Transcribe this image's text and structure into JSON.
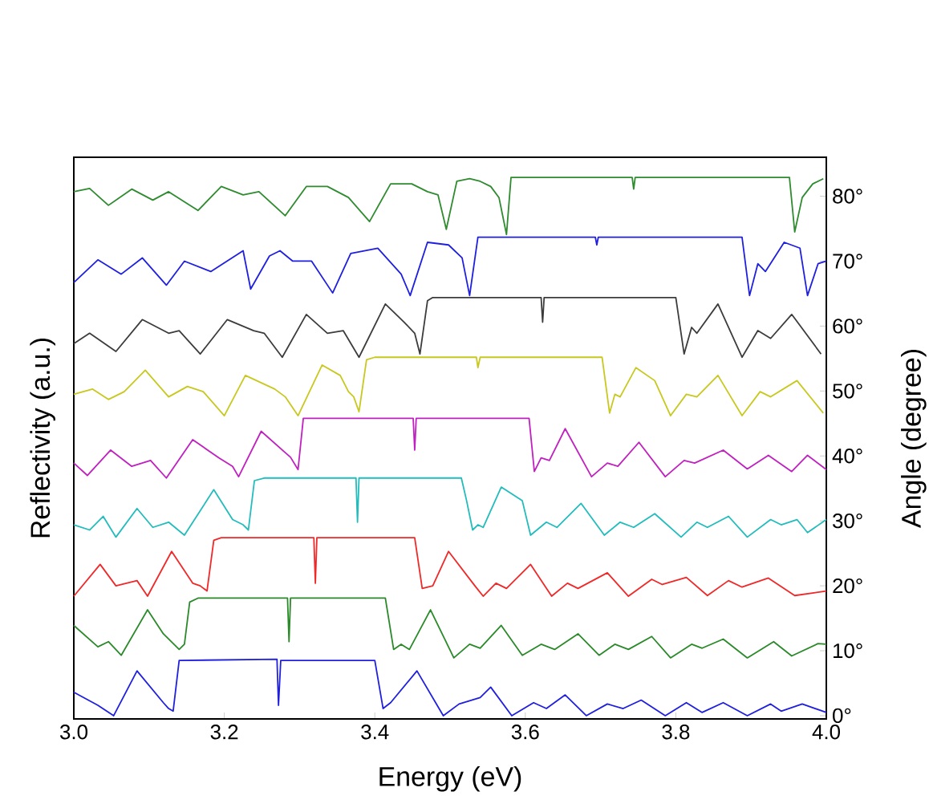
{
  "chart_data": {
    "type": "line",
    "xlabel": "Energy (eV)",
    "ylabel": "Reflectivity (a.u.)",
    "y2label": "Angle (degree)",
    "xlim": [
      3.0,
      4.0
    ],
    "xticks": [
      {
        "value": 3.0,
        "label": "3.0"
      },
      {
        "value": 3.2,
        "label": "3.2"
      },
      {
        "value": 3.4,
        "label": "3.4"
      },
      {
        "value": 3.6,
        "label": "3.6"
      },
      {
        "value": 3.8,
        "label": "3.8"
      },
      {
        "value": 4.0,
        "label": "4.0"
      }
    ],
    "ylim": [
      -0.5,
      86
    ],
    "yticks": [
      {
        "value": 0,
        "label": "0°"
      },
      {
        "value": 10,
        "label": "10°"
      },
      {
        "value": 20,
        "label": "20°"
      },
      {
        "value": 30,
        "label": "30°"
      },
      {
        "value": 40,
        "label": "40°"
      },
      {
        "value": 50,
        "label": "50°"
      },
      {
        "value": 60,
        "label": "60°"
      },
      {
        "value": 70,
        "label": "70°"
      },
      {
        "value": 80,
        "label": "80°"
      }
    ],
    "marker": "none",
    "line_style": "solid",
    "series": [
      {
        "color": "#1f1fe0",
        "x": [
          3.0,
          3.032,
          3.053,
          3.084,
          3.119,
          3.126,
          3.132,
          3.14,
          3.27,
          3.272,
          3.275,
          3.4,
          3.411,
          3.421,
          3.456,
          3.491,
          3.512,
          3.54,
          3.554,
          3.582,
          3.611,
          3.628,
          3.653,
          3.681,
          3.709,
          3.73,
          3.754,
          3.786,
          3.814,
          3.835,
          3.863,
          3.895,
          3.926,
          3.94,
          3.968,
          4.0
        ],
        "values": [
          3.6,
          1.6,
          0,
          6.9,
          2.0,
          1.1,
          0.7,
          8.5,
          8.7,
          1.6,
          8.5,
          8.5,
          1.1,
          2.0,
          6.9,
          0,
          1.8,
          2.8,
          4.4,
          0,
          2.0,
          1.1,
          3.2,
          0,
          1.8,
          1.1,
          2.4,
          0,
          2.0,
          0.5,
          2.0,
          0,
          1.8,
          0.7,
          1.8,
          0.5
        ]
      },
      {
        "color": "#2a8a2a",
        "x": [
          3.0,
          3.032,
          3.046,
          3.063,
          3.098,
          3.119,
          3.14,
          3.147,
          3.154,
          3.165,
          3.284,
          3.286,
          3.288,
          3.414,
          3.425,
          3.435,
          3.446,
          3.474,
          3.505,
          3.526,
          3.54,
          3.568,
          3.596,
          3.621,
          3.639,
          3.67,
          3.698,
          3.719,
          3.737,
          3.768,
          3.793,
          3.821,
          3.835,
          3.863,
          3.895,
          3.93,
          3.954,
          3.989,
          4.0
        ],
        "values": [
          13.9,
          10.6,
          11.4,
          9.3,
          16.3,
          12.6,
          10.2,
          11.0,
          17.5,
          18.1,
          18.1,
          11.4,
          18.1,
          18.1,
          10.2,
          11.0,
          10.2,
          16.3,
          8.9,
          11.0,
          10.4,
          13.9,
          9.3,
          11.0,
          10.2,
          12.6,
          9.3,
          11.0,
          10.2,
          12.2,
          8.9,
          11.0,
          10.4,
          11.8,
          8.9,
          11.4,
          9.2,
          11.1,
          11.0
        ]
      },
      {
        "color": "#f02828",
        "x": [
          3.0,
          3.035,
          3.056,
          3.084,
          3.098,
          3.13,
          3.158,
          3.168,
          3.177,
          3.186,
          3.196,
          3.319,
          3.321,
          3.323,
          3.453,
          3.463,
          3.477,
          3.498,
          3.533,
          3.544,
          3.561,
          3.575,
          3.607,
          3.635,
          3.656,
          3.67,
          3.709,
          3.737,
          3.768,
          3.782,
          3.814,
          3.842,
          3.87,
          3.888,
          3.923,
          3.958,
          4.0
        ],
        "values": [
          18.4,
          23.3,
          20.0,
          20.8,
          18.4,
          25.3,
          20.4,
          20.0,
          19.2,
          27.0,
          27.4,
          27.4,
          20.4,
          27.4,
          27.4,
          19.6,
          20.0,
          25.3,
          20.0,
          18.4,
          20.4,
          19.6,
          23.3,
          18.4,
          20.4,
          19.6,
          22.0,
          18.4,
          21.0,
          20.2,
          21.3,
          18.5,
          20.8,
          19.8,
          21.2,
          18.5,
          19.2
        ]
      },
      {
        "color": "#22bcbc",
        "x": [
          3.0,
          3.021,
          3.039,
          3.056,
          3.084,
          3.105,
          3.126,
          3.147,
          3.186,
          3.211,
          3.225,
          3.232,
          3.24,
          3.253,
          3.375,
          3.377,
          3.379,
          3.515,
          3.522,
          3.53,
          3.537,
          3.544,
          3.568,
          3.596,
          3.607,
          3.628,
          3.642,
          3.674,
          3.705,
          3.726,
          3.744,
          3.772,
          3.807,
          3.828,
          3.842,
          3.87,
          3.895,
          3.926,
          3.94,
          3.961,
          3.975,
          4.0
        ],
        "values": [
          29.4,
          28.6,
          30.7,
          27.5,
          31.9,
          29.0,
          29.8,
          27.8,
          34.8,
          30.2,
          29.4,
          28.6,
          36.2,
          36.6,
          36.6,
          29.8,
          36.6,
          36.6,
          33.1,
          28.6,
          29.4,
          29.0,
          35.2,
          33.1,
          27.8,
          29.8,
          29.0,
          32.7,
          27.8,
          29.8,
          29.0,
          31.1,
          27.5,
          29.8,
          29.0,
          30.7,
          27.5,
          30.2,
          29.4,
          30.2,
          28.2,
          30.2
        ]
      },
      {
        "color": "#c020c0",
        "x": [
          3.0,
          3.018,
          3.049,
          3.077,
          3.102,
          3.123,
          3.158,
          3.193,
          3.211,
          3.219,
          3.249,
          3.281,
          3.288,
          3.298,
          3.305,
          3.451,
          3.453,
          3.455,
          3.605,
          3.612,
          3.621,
          3.632,
          3.653,
          3.688,
          3.709,
          3.723,
          3.751,
          3.786,
          3.811,
          3.825,
          3.863,
          3.895,
          3.923,
          3.954,
          3.975,
          4.0
        ],
        "values": [
          38.9,
          37.0,
          40.9,
          38.4,
          39.3,
          36.6,
          42.5,
          39.7,
          38.4,
          36.8,
          43.8,
          40.5,
          39.8,
          37.9,
          45.8,
          45.8,
          40.9,
          45.8,
          45.8,
          37.6,
          39.7,
          39.3,
          44.2,
          36.8,
          38.9,
          38.4,
          42.1,
          36.8,
          39.3,
          38.9,
          40.9,
          38.0,
          40.1,
          37.6,
          40.1,
          37.9
        ]
      },
      {
        "color": "#c8c81e",
        "x": [
          3.0,
          3.025,
          3.046,
          3.067,
          3.095,
          3.126,
          3.151,
          3.172,
          3.2,
          3.228,
          3.267,
          3.281,
          3.298,
          3.33,
          3.354,
          3.365,
          3.372,
          3.379,
          3.389,
          3.4,
          3.535,
          3.537,
          3.54,
          3.702,
          3.712,
          3.719,
          3.726,
          3.747,
          3.772,
          3.793,
          3.814,
          3.828,
          3.856,
          3.888,
          3.912,
          3.926,
          3.961,
          3.996
        ],
        "values": [
          49.5,
          50.3,
          48.7,
          49.9,
          53.2,
          49.1,
          50.7,
          49.9,
          46.2,
          52.4,
          50.3,
          49.1,
          46.2,
          54.0,
          52.4,
          49.9,
          49.1,
          46.8,
          54.8,
          55.2,
          55.2,
          53.6,
          55.2,
          55.2,
          46.6,
          49.5,
          49.1,
          53.6,
          51.6,
          46.2,
          49.5,
          49.1,
          52.4,
          46.2,
          49.9,
          49.1,
          51.6,
          46.6
        ]
      },
      {
        "color": "#3c3c3c",
        "x": [
          3.0,
          3.021,
          3.056,
          3.091,
          3.126,
          3.14,
          3.168,
          3.204,
          3.239,
          3.253,
          3.277,
          3.309,
          3.337,
          3.358,
          3.379,
          3.414,
          3.439,
          3.453,
          3.46,
          3.47,
          3.477,
          3.621,
          3.623,
          3.625,
          3.8,
          3.811,
          3.821,
          3.828,
          3.856,
          3.888,
          3.909,
          3.926,
          3.954,
          3.993
        ],
        "values": [
          57.3,
          58.9,
          56.1,
          61.0,
          58.9,
          59.3,
          55.7,
          61.0,
          59.3,
          58.9,
          55.2,
          61.8,
          58.9,
          59.3,
          55.2,
          63.4,
          60.6,
          58.9,
          55.7,
          63.9,
          64.4,
          64.4,
          60.6,
          64.4,
          64.4,
          55.7,
          59.8,
          58.9,
          63.4,
          55.2,
          59.3,
          58.1,
          61.8,
          55.7
        ]
      },
      {
        "color": "#1f1fe0",
        "x": [
          3.0,
          3.032,
          3.063,
          3.091,
          3.123,
          3.147,
          3.182,
          3.225,
          3.235,
          3.26,
          3.274,
          3.291,
          3.316,
          3.344,
          3.368,
          3.404,
          3.435,
          3.447,
          3.47,
          3.498,
          3.516,
          3.526,
          3.537,
          3.693,
          3.695,
          3.697,
          3.888,
          3.898,
          3.909,
          3.919,
          3.944,
          3.965,
          3.975,
          3.989,
          4.0
        ],
        "values": [
          66.7,
          70.2,
          68.0,
          70.5,
          66.3,
          70.0,
          68.4,
          71.6,
          65.7,
          70.8,
          71.6,
          70.0,
          70.0,
          65.1,
          71.2,
          72.0,
          68.0,
          64.7,
          72.9,
          72.5,
          70.5,
          64.7,
          73.7,
          73.7,
          72.5,
          73.7,
          73.7,
          64.7,
          69.6,
          68.4,
          72.9,
          72.0,
          64.7,
          69.6,
          70.0
        ]
      },
      {
        "color": "#2e8b2e",
        "x": [
          3.0,
          3.021,
          3.046,
          3.077,
          3.105,
          3.126,
          3.165,
          3.196,
          3.225,
          3.246,
          3.281,
          3.309,
          3.337,
          3.365,
          3.393,
          3.421,
          3.449,
          3.47,
          3.484,
          3.495,
          3.509,
          3.526,
          3.54,
          3.554,
          3.565,
          3.575,
          3.581,
          3.742,
          3.744,
          3.746,
          3.951,
          3.958,
          3.968,
          3.982,
          3.996
        ],
        "values": [
          80.7,
          81.2,
          78.6,
          81.1,
          79.4,
          80.7,
          77.8,
          81.5,
          80.2,
          80.7,
          77.0,
          81.5,
          81.5,
          79.8,
          76.1,
          81.9,
          81.9,
          80.7,
          80.2,
          74.9,
          82.3,
          82.7,
          82.3,
          81.5,
          79.8,
          74.1,
          82.9,
          82.9,
          81.1,
          82.9,
          82.9,
          74.5,
          79.8,
          81.9,
          82.7
        ]
      }
    ]
  }
}
